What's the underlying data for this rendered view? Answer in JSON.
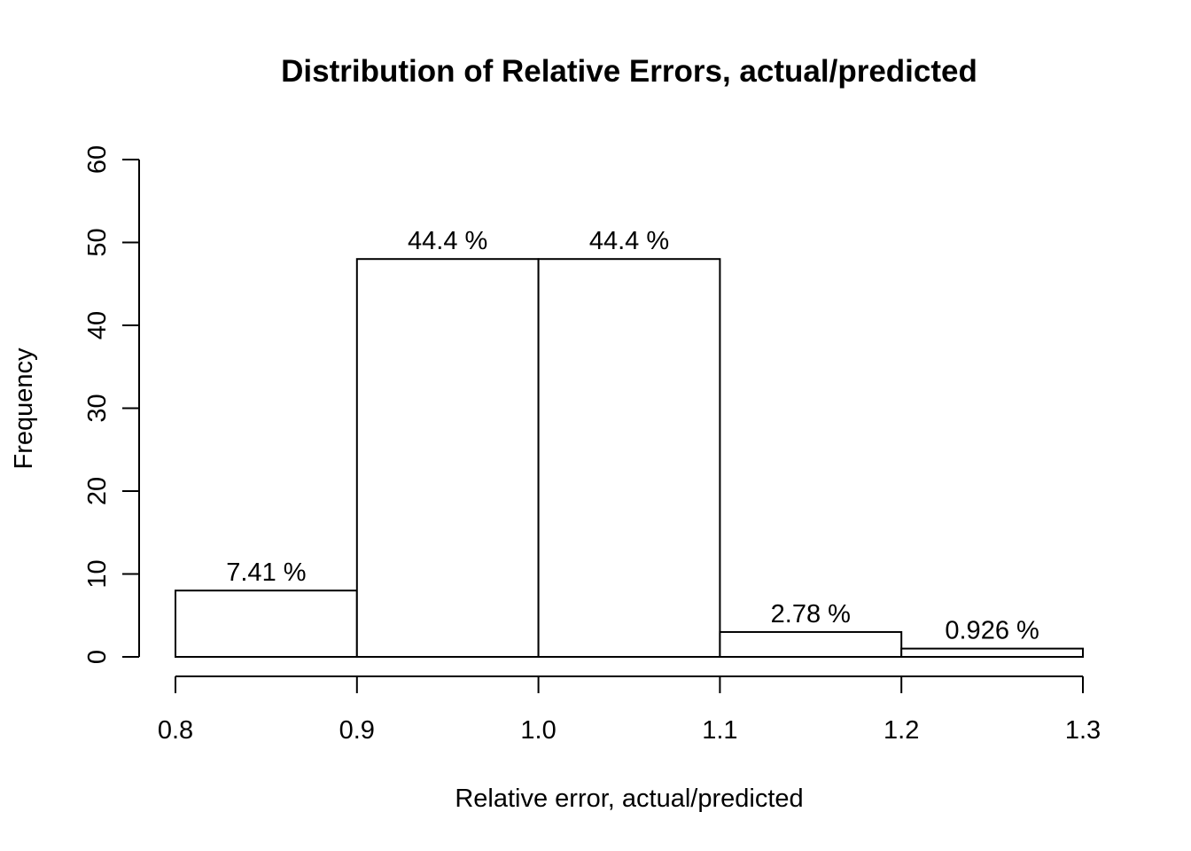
{
  "chart_data": {
    "type": "bar",
    "title": "Distribution of Relative Errors, actual/predicted",
    "xlabel": "Relative error, actual/predicted",
    "ylabel": "Frequency",
    "bins": [
      {
        "start": 0.8,
        "end": 0.9,
        "value": 8,
        "label": "7.41 %"
      },
      {
        "start": 0.9,
        "end": 1.0,
        "value": 48,
        "label": "44.4 %"
      },
      {
        "start": 1.0,
        "end": 1.1,
        "value": 48,
        "label": "44.4 %"
      },
      {
        "start": 1.1,
        "end": 1.2,
        "value": 3,
        "label": "2.78 %"
      },
      {
        "start": 1.2,
        "end": 1.3,
        "value": 1,
        "label": "0.926 %"
      }
    ],
    "xlim": [
      0.8,
      1.3
    ],
    "ylim": [
      0,
      60
    ],
    "x_ticks": [
      "0.8",
      "0.9",
      "1.0",
      "1.1",
      "1.2",
      "1.3"
    ],
    "y_ticks": [
      "0",
      "10",
      "20",
      "30",
      "40",
      "50",
      "60"
    ],
    "grid": false,
    "bar_fill": "#ffffff",
    "bar_stroke": "#000000"
  }
}
